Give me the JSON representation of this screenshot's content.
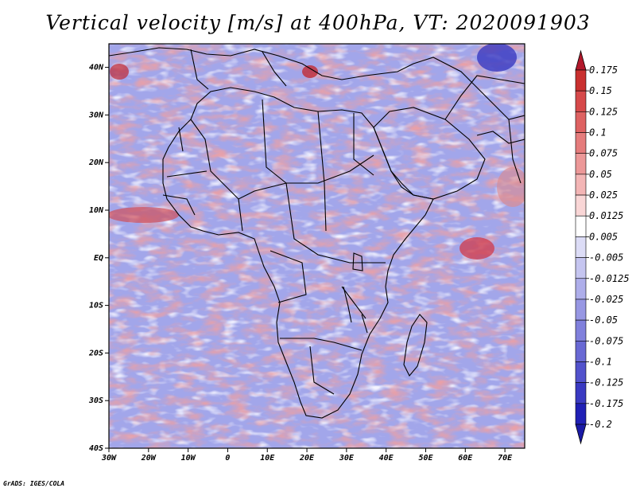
{
  "title": "Vertical velocity [m/s] at 400hPa, VT: 2020091903",
  "credit": "GrADS: IGES/COLA",
  "map": {
    "lon_ticks": [
      "30W",
      "20W",
      "10W",
      "0",
      "10E",
      "20E",
      "30E",
      "40E",
      "50E",
      "60E",
      "70E"
    ],
    "lat_ticks": [
      "40S",
      "30S",
      "20S",
      "10S",
      "EQ",
      "10N",
      "20N",
      "30N",
      "40N"
    ],
    "lon_range": [
      -30,
      75
    ],
    "lat_range": [
      -40,
      45
    ]
  },
  "colorbar": {
    "labels": [
      "0.175",
      "0.15",
      "0.125",
      "0.1",
      "0.075",
      "0.05",
      "0.025",
      "0.0125",
      "0.005",
      "-0.005",
      "-0.0125",
      "-0.025",
      "-0.05",
      "-0.075",
      "-0.1",
      "-0.125",
      "-0.175",
      "-0.2"
    ],
    "colors": [
      "#b2182b",
      "#c9302f",
      "#d6494a",
      "#de6262",
      "#e57c7c",
      "#ec9898",
      "#f3b5b5",
      "#f9d6d6",
      "#ffffff",
      "#dcdcf6",
      "#c5c5f0",
      "#aeaeea",
      "#9797e3",
      "#8080dc",
      "#6969d4",
      "#5252cc",
      "#3a3ac2",
      "#2020b5",
      "#1a1aa6"
    ]
  }
}
